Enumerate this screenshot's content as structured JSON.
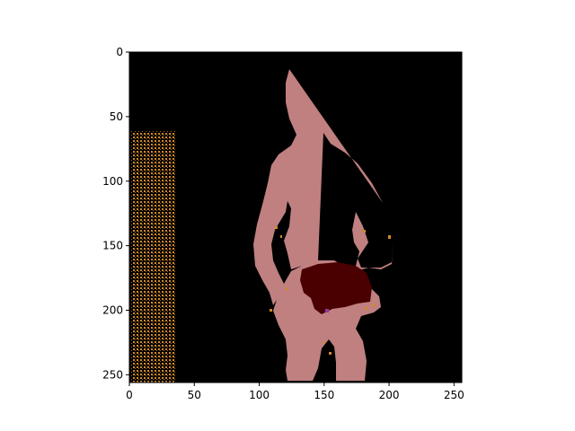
{
  "figure": {
    "x_ticks": [
      "0",
      "50",
      "100",
      "150",
      "200",
      "250"
    ],
    "y_ticks": [
      "0",
      "50",
      "100",
      "150",
      "200",
      "250"
    ],
    "x_range": [
      0,
      256
    ],
    "y_range": [
      0,
      256
    ],
    "y_inverted": true,
    "grid": false
  },
  "colors": {
    "background": "#000000",
    "person": "#c08080",
    "object": "#4a0000",
    "noise": "#d08a28",
    "accent_purple": "#8a3aa0"
  }
}
